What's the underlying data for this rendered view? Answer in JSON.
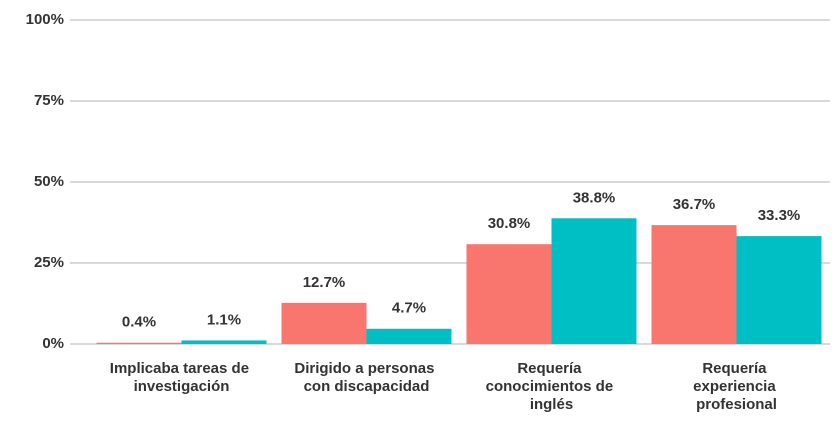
{
  "chart_data": {
    "type": "bar",
    "categories": [
      "Implicaba tareas de investigación",
      "Dirigido a personas con discapacidad",
      "Requería conocimientos de inglés",
      "Requería experiencia profesional"
    ],
    "series": [
      {
        "color": "#f8766d",
        "values": [
          0.4,
          12.7,
          30.8,
          36.7
        ],
        "value_labels": [
          "0.4%",
          "12.7%",
          "30.8%",
          "36.7%"
        ]
      },
      {
        "color": "#00bfc4",
        "values": [
          1.1,
          4.7,
          38.8,
          33.3
        ],
        "value_labels": [
          "1.1%",
          "4.7%",
          "38.8%",
          "33.3%"
        ]
      }
    ],
    "ylim": [
      0,
      100
    ],
    "yticks": [
      {
        "value": 0,
        "label": "0%"
      },
      {
        "value": 25,
        "label": "25%"
      },
      {
        "value": 50,
        "label": "50%"
      },
      {
        "value": 75,
        "label": "75%"
      },
      {
        "value": 100,
        "label": "100%"
      }
    ],
    "grid": true
  }
}
